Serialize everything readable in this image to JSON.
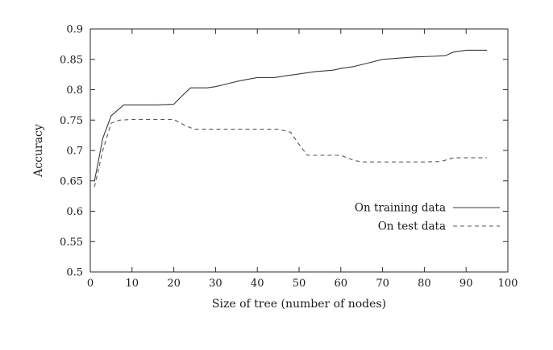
{
  "figure": {
    "background": "#ffffff",
    "axis_color": "#2a2a2a",
    "text_color": "#1a1a1a"
  },
  "chart_data": {
    "type": "line",
    "title": "",
    "xlabel": "Size of tree (number of nodes)",
    "ylabel": "Accuracy",
    "xlim": [
      0,
      100
    ],
    "ylim": [
      0.5,
      0.9
    ],
    "x_ticks": [
      0,
      10,
      20,
      30,
      40,
      50,
      60,
      70,
      80,
      90,
      100
    ],
    "y_ticks": [
      0.5,
      0.55,
      0.6,
      0.65,
      0.7,
      0.75,
      0.8,
      0.85,
      0.9
    ],
    "grid": false,
    "legend_position": "inside-right-lower",
    "series": [
      {
        "name": "On training data",
        "style": "solid",
        "color": "#3a3a3a",
        "points": [
          [
            1,
            0.65
          ],
          [
            2,
            0.685
          ],
          [
            3,
            0.72
          ],
          [
            5,
            0.757
          ],
          [
            8,
            0.775
          ],
          [
            12,
            0.775
          ],
          [
            16,
            0.775
          ],
          [
            20,
            0.776
          ],
          [
            22,
            0.79
          ],
          [
            24,
            0.803
          ],
          [
            28,
            0.803
          ],
          [
            30,
            0.805
          ],
          [
            33,
            0.81
          ],
          [
            36,
            0.815
          ],
          [
            40,
            0.82
          ],
          [
            44,
            0.82
          ],
          [
            47,
            0.823
          ],
          [
            50,
            0.826
          ],
          [
            54,
            0.83
          ],
          [
            58,
            0.832
          ],
          [
            60,
            0.835
          ],
          [
            63,
            0.838
          ],
          [
            66,
            0.843
          ],
          [
            70,
            0.85
          ],
          [
            74,
            0.852
          ],
          [
            78,
            0.854
          ],
          [
            82,
            0.855
          ],
          [
            85,
            0.856
          ],
          [
            87,
            0.862
          ],
          [
            90,
            0.865
          ],
          [
            95,
            0.865
          ]
        ]
      },
      {
        "name": "On test data",
        "style": "dashed",
        "color": "#555555",
        "points": [
          [
            1,
            0.64
          ],
          [
            3,
            0.7
          ],
          [
            5,
            0.745
          ],
          [
            7,
            0.75
          ],
          [
            10,
            0.751
          ],
          [
            15,
            0.751
          ],
          [
            20,
            0.751
          ],
          [
            23,
            0.74
          ],
          [
            25,
            0.735
          ],
          [
            30,
            0.735
          ],
          [
            35,
            0.735
          ],
          [
            40,
            0.735
          ],
          [
            45,
            0.735
          ],
          [
            48,
            0.73
          ],
          [
            50,
            0.71
          ],
          [
            52,
            0.692
          ],
          [
            55,
            0.692
          ],
          [
            58,
            0.692
          ],
          [
            60,
            0.692
          ],
          [
            63,
            0.684
          ],
          [
            65,
            0.681
          ],
          [
            70,
            0.681
          ],
          [
            75,
            0.681
          ],
          [
            80,
            0.681
          ],
          [
            84,
            0.682
          ],
          [
            87,
            0.688
          ],
          [
            90,
            0.688
          ],
          [
            95,
            0.688
          ]
        ]
      }
    ]
  }
}
